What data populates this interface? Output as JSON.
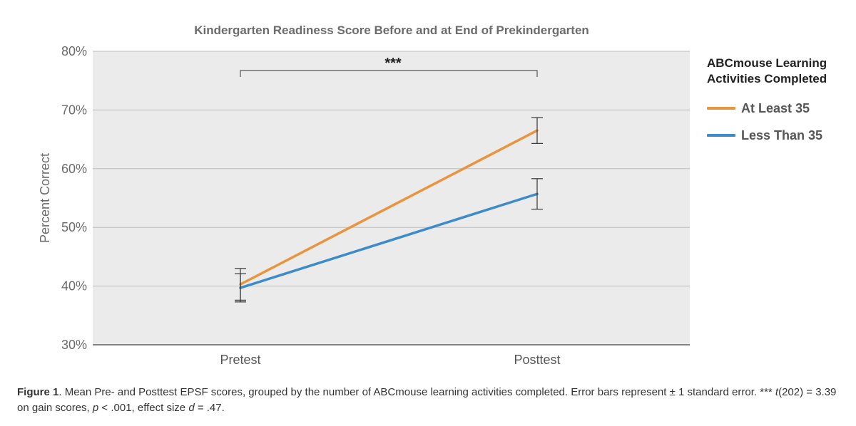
{
  "chart_data": {
    "type": "line",
    "title": "Kindergarten Readiness Score Before and at End of Prekindergarten",
    "ylabel": "Percent Correct",
    "xlabel": "",
    "categories": [
      "Pretest",
      "Posttest"
    ],
    "ylim": [
      30,
      80
    ],
    "yticks": [
      30,
      40,
      50,
      60,
      70,
      80
    ],
    "ytick_labels": [
      "30%",
      "40%",
      "50%",
      "60%",
      "70%",
      "80%"
    ],
    "grid": true,
    "legend": {
      "title": "ABCmouse Learning Activities Completed",
      "placement": "right"
    },
    "series": [
      {
        "name": "At Least 35",
        "color": "#E9953F",
        "values": [
          40.3,
          66.5
        ],
        "error": [
          2.7,
          2.2
        ]
      },
      {
        "name": "Less Than 35",
        "color": "#3E8BC9",
        "values": [
          39.7,
          55.7
        ],
        "error": [
          2.4,
          2.6
        ]
      }
    ],
    "annotations": [
      {
        "text": "***",
        "type": "significance-bracket"
      }
    ]
  },
  "caption": {
    "figure_label": "Figure 1",
    "part1": ". Mean Pre- and Posttest EPSF scores, grouped by the number of ABCmouse learning activities completed. Error bars represent ± 1 standard error. *** ",
    "stat_t": "t",
    "part2": "(202) = 3.39 on gain scores, ",
    "stat_p": "p",
    "part3": " < .001, effect size ",
    "stat_d": "d",
    "part4": " = .47."
  }
}
